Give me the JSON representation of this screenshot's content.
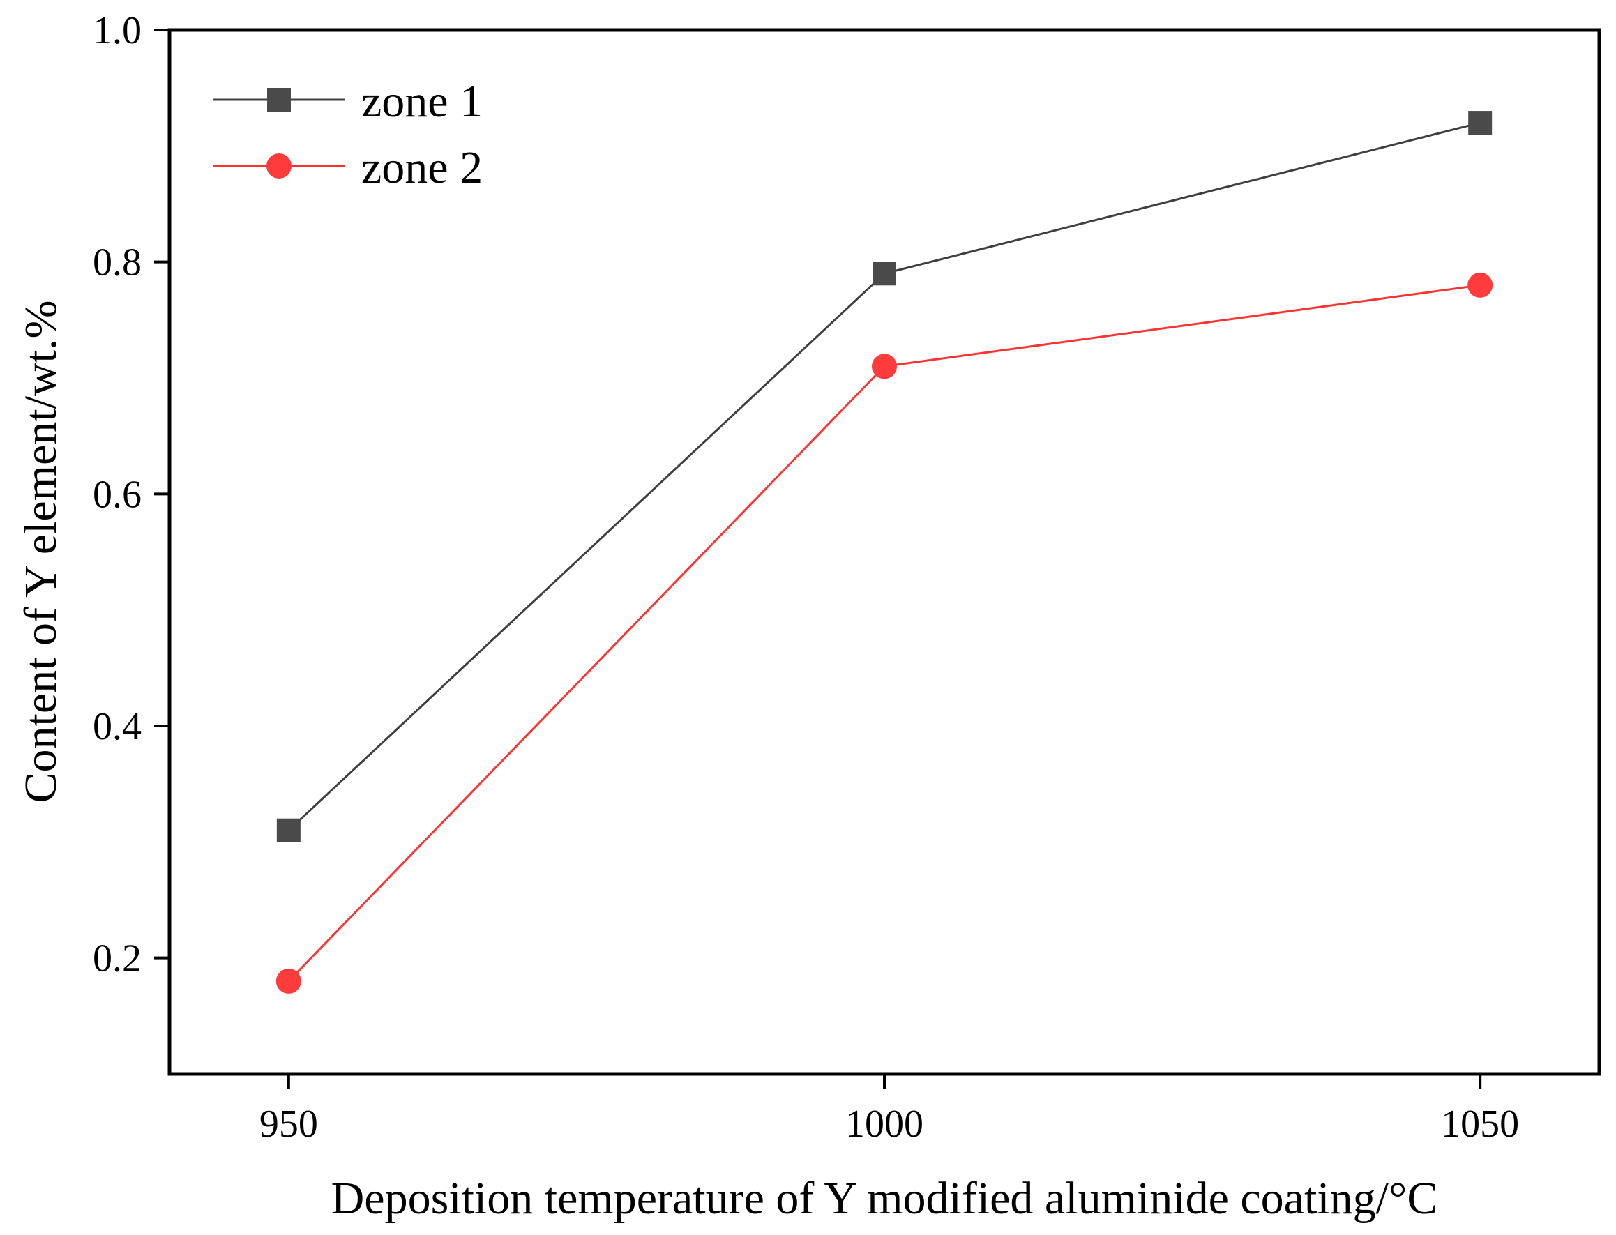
{
  "chart_data": {
    "type": "line",
    "title": "",
    "xlabel": "Deposition temperature of Y modified aluminide coating/°C",
    "ylabel": "Content of Y element/wt.%",
    "x": [
      950,
      1000,
      1050
    ],
    "xlim": [
      940,
      1060
    ],
    "ylim": [
      0.1,
      1.0
    ],
    "xticks": [
      950,
      1000,
      1050
    ],
    "xtick_labels": [
      "950",
      "1000",
      "1050"
    ],
    "yticks": [
      0.2,
      0.4,
      0.6,
      0.8,
      1.0
    ],
    "ytick_labels": [
      "0.2",
      "0.4",
      "0.6",
      "0.8",
      "1.0"
    ],
    "grid": false,
    "legend_position": "top-left",
    "series": [
      {
        "name": "zone 1",
        "marker": "square",
        "color": "#3f3f3f",
        "marker_color": "#4a4a4a",
        "values": [
          0.31,
          0.79,
          0.92
        ]
      },
      {
        "name": "zone 2",
        "marker": "circle",
        "color": "#ff3333",
        "marker_color": "#ff3b3b",
        "values": [
          0.18,
          0.71,
          0.78
        ]
      }
    ]
  }
}
